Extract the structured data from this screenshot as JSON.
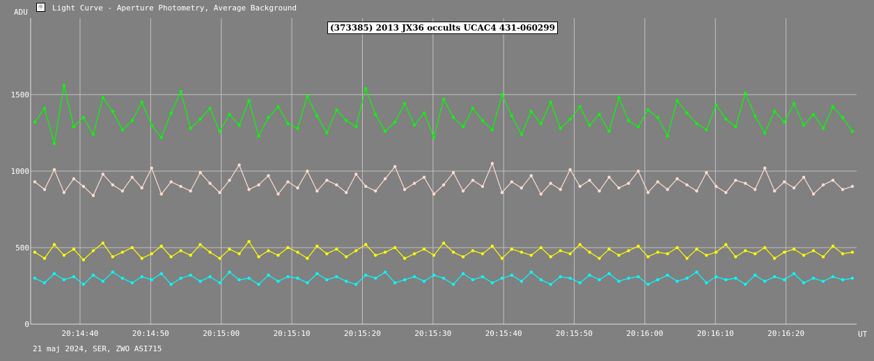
{
  "window": {
    "title": "Light Curve - Aperture Photometry, Average Background",
    "icon": "light-curve-app-icon"
  },
  "footer": {
    "info": "21 maj 2024, SER, ZWO ASI715"
  },
  "chart_data": {
    "type": "line",
    "title": "(373385) 2013 JX36 occults UCAC4 431-060299",
    "ylabel": "ADU",
    "xlabel": "UT",
    "ylim": [
      0,
      2000
    ],
    "yticks": [
      "0",
      "500",
      "1000",
      "1500"
    ],
    "xticks": [
      "20:14:40",
      "20:14:50",
      "20:15:00",
      "20:15:10",
      "20:15:20",
      "20:15:30",
      "20:15:40",
      "20:15:50",
      "20:16:00",
      "20:16:10",
      "20:16:20"
    ],
    "xlim": [
      "20:14:33",
      "20:16:30"
    ],
    "grid": true,
    "legend": "none",
    "background_color": "#808080",
    "grid_color": "#c0c0c0",
    "series": [
      {
        "color": "#00ff00",
        "values": [
          1320,
          1410,
          1180,
          1560,
          1290,
          1350,
          1240,
          1480,
          1390,
          1270,
          1330,
          1450,
          1300,
          1220,
          1380,
          1520,
          1280,
          1340,
          1410,
          1260,
          1370,
          1300,
          1460,
          1230,
          1350,
          1420,
          1310,
          1280,
          1490,
          1360,
          1250,
          1400,
          1330,
          1290,
          1540,
          1370,
          1260,
          1320,
          1440,
          1300,
          1380,
          1220,
          1470,
          1350,
          1290,
          1410,
          1330,
          1270,
          1500,
          1360,
          1240,
          1390,
          1310,
          1450,
          1280,
          1340,
          1420,
          1300,
          1370,
          1260,
          1480,
          1330,
          1290,
          1400,
          1350,
          1230,
          1460,
          1380,
          1310,
          1270,
          1430,
          1340,
          1290,
          1510,
          1360,
          1250,
          1390,
          1320,
          1440,
          1300,
          1370,
          1280,
          1420,
          1350,
          1260
        ]
      },
      {
        "color": "#ffdcd2",
        "values": [
          930,
          880,
          1010,
          860,
          950,
          900,
          840,
          980,
          910,
          870,
          960,
          890,
          1020,
          850,
          930,
          900,
          870,
          990,
          920,
          860,
          940,
          1040,
          880,
          910,
          970,
          850,
          930,
          890,
          1000,
          870,
          940,
          910,
          860,
          980,
          900,
          870,
          950,
          1030,
          880,
          920,
          960,
          850,
          910,
          990,
          870,
          940,
          900,
          1050,
          860,
          930,
          890,
          970,
          850,
          920,
          880,
          1010,
          900,
          940,
          870,
          960,
          890,
          920,
          1000,
          860,
          930,
          880,
          950,
          910,
          870,
          990,
          900,
          860,
          940,
          920,
          880,
          1020,
          870,
          930,
          890,
          960,
          850,
          910,
          940,
          880,
          900
        ]
      },
      {
        "color": "#ffff00",
        "values": [
          470,
          430,
          520,
          450,
          490,
          420,
          480,
          530,
          440,
          470,
          500,
          430,
          460,
          510,
          440,
          480,
          450,
          520,
          470,
          430,
          490,
          460,
          540,
          440,
          480,
          450,
          500,
          470,
          430,
          510,
          460,
          490,
          440,
          480,
          520,
          450,
          470,
          500,
          430,
          460,
          490,
          450,
          530,
          470,
          440,
          480,
          460,
          510,
          430,
          490,
          470,
          450,
          500,
          440,
          480,
          460,
          520,
          470,
          430,
          490,
          450,
          480,
          510,
          440,
          470,
          460,
          500,
          430,
          490,
          450,
          470,
          520,
          440,
          480,
          460,
          500,
          430,
          470,
          490,
          450,
          480,
          440,
          510,
          460,
          470
        ]
      },
      {
        "color": "#00ffff",
        "values": [
          300,
          270,
          330,
          290,
          310,
          260,
          320,
          280,
          340,
          300,
          270,
          310,
          290,
          330,
          260,
          300,
          320,
          280,
          310,
          270,
          340,
          290,
          300,
          260,
          320,
          280,
          310,
          300,
          270,
          330,
          290,
          310,
          280,
          260,
          320,
          300,
          340,
          270,
          290,
          310,
          280,
          320,
          300,
          260,
          330,
          290,
          310,
          270,
          300,
          320,
          280,
          340,
          290,
          260,
          310,
          300,
          270,
          320,
          290,
          330,
          280,
          300,
          310,
          260,
          290,
          320,
          280,
          300,
          340,
          270,
          310,
          290,
          300,
          260,
          320,
          280,
          310,
          290,
          330,
          270,
          300,
          280,
          310,
          290,
          300
        ]
      }
    ]
  }
}
